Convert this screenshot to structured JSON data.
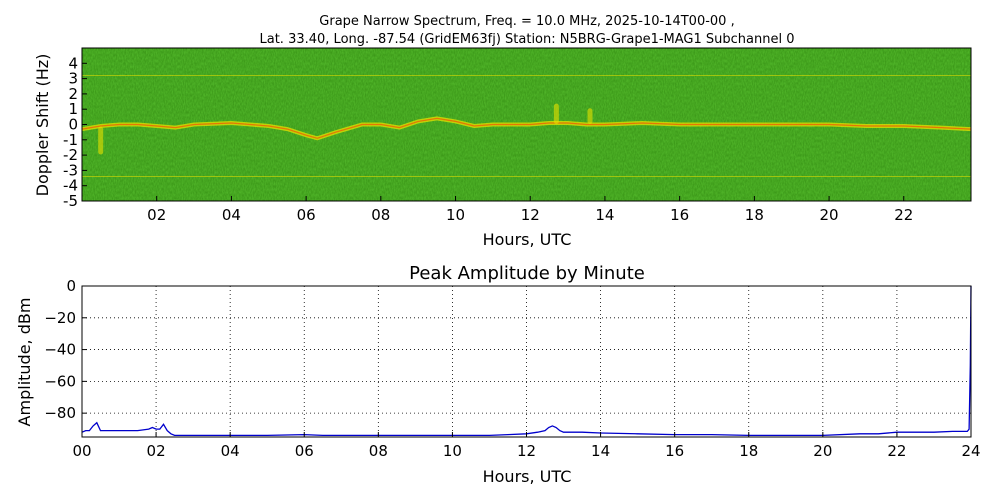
{
  "header": {
    "line1": "Grape Narrow Spectrum, Freq. = 10.0 MHz, 2025-10-14T00-00 ,",
    "line2": "Lat.  33.40, Long. -87.54 (GridEM63fj) Station: N5BRG-Grape1-MAG1 Subchannel 0"
  },
  "chart_data": [
    {
      "type": "heatmap",
      "title": "",
      "xlabel": "Hours, UTC",
      "ylabel": "Doppler Shift (Hz)",
      "xlim": [
        0,
        23.8
      ],
      "ylim": [
        -5,
        5
      ],
      "xticks": [
        {
          "value": 2,
          "label": "02"
        },
        {
          "value": 4,
          "label": "04"
        },
        {
          "value": 6,
          "label": "06"
        },
        {
          "value": 8,
          "label": "08"
        },
        {
          "value": 10,
          "label": "10"
        },
        {
          "value": 12,
          "label": "12"
        },
        {
          "value": 14,
          "label": "14"
        },
        {
          "value": 16,
          "label": "16"
        },
        {
          "value": 18,
          "label": "18"
        },
        {
          "value": 20,
          "label": "20"
        },
        {
          "value": 22,
          "label": "22"
        }
      ],
      "yticks": [
        {
          "value": 4,
          "label": "4"
        },
        {
          "value": 3,
          "label": "3"
        },
        {
          "value": 2,
          "label": "2"
        },
        {
          "value": 1,
          "label": "1"
        },
        {
          "value": 0,
          "label": "0"
        },
        {
          "value": -1,
          "label": "-1"
        },
        {
          "value": -2,
          "label": "-2"
        },
        {
          "value": -3,
          "label": "-3"
        },
        {
          "value": -4,
          "label": "-4"
        },
        {
          "value": -5,
          "label": "-5"
        }
      ],
      "background_color": "#3d9a1a",
      "signal_color": "#e8e000",
      "peak_color": "#ff3a00",
      "carrier_trace": {
        "hours": [
          0,
          0.5,
          1.0,
          1.5,
          2.0,
          2.5,
          3.0,
          4.0,
          5.0,
          5.5,
          6.0,
          6.3,
          6.8,
          7.5,
          8.0,
          8.5,
          9.0,
          9.5,
          10.0,
          10.5,
          11.0,
          12.0,
          12.5,
          13.0,
          13.5,
          14.0,
          15.0,
          16.0,
          17.0,
          18.0,
          19.0,
          20.0,
          21.0,
          22.0,
          23.0,
          23.8
        ],
        "shift_hz": [
          -0.3,
          -0.1,
          0.0,
          0.0,
          -0.1,
          -0.2,
          0.0,
          0.1,
          -0.1,
          -0.3,
          -0.7,
          -0.9,
          -0.5,
          0.0,
          0.0,
          -0.2,
          0.2,
          0.4,
          0.2,
          -0.1,
          0.0,
          0.0,
          0.1,
          0.1,
          0.0,
          0.0,
          0.1,
          0.0,
          0.0,
          0.0,
          0.0,
          0.0,
          -0.1,
          -0.1,
          -0.2,
          -0.3
        ]
      },
      "harmonic_lines_hz": [
        3.2,
        -3.4
      ],
      "excursions": [
        {
          "hour": 12.7,
          "shift_hz": [
            0.2,
            1.2
          ]
        },
        {
          "hour": 13.6,
          "shift_hz": [
            0.2,
            0.9
          ]
        },
        {
          "hour": 0.5,
          "shift_hz": [
            -1.8,
            -0.3
          ]
        }
      ]
    },
    {
      "type": "line",
      "title": "Peak Amplitude by Minute",
      "xlabel": "Hours, UTC",
      "ylabel": "Amplitude, dBm",
      "xlim": [
        0,
        24
      ],
      "ylim": [
        -95,
        0
      ],
      "grid": true,
      "line_color": "#0000cc",
      "xticks": [
        {
          "value": 0,
          "label": "00"
        },
        {
          "value": 2,
          "label": "02"
        },
        {
          "value": 4,
          "label": "04"
        },
        {
          "value": 6,
          "label": "06"
        },
        {
          "value": 8,
          "label": "08"
        },
        {
          "value": 10,
          "label": "10"
        },
        {
          "value": 12,
          "label": "12"
        },
        {
          "value": 14,
          "label": "14"
        },
        {
          "value": 16,
          "label": "16"
        },
        {
          "value": 18,
          "label": "18"
        },
        {
          "value": 20,
          "label": "20"
        },
        {
          "value": 22,
          "label": "22"
        },
        {
          "value": 24,
          "label": "24"
        }
      ],
      "yticks": [
        {
          "value": 0,
          "label": "0"
        },
        {
          "value": -20,
          "label": "−20"
        },
        {
          "value": -40,
          "label": "−40"
        },
        {
          "value": -60,
          "label": "−60"
        },
        {
          "value": -80,
          "label": "−80"
        }
      ],
      "series": [
        {
          "x": [
            0,
            0.1,
            0.2,
            0.3,
            0.4,
            0.5,
            1.0,
            1.5,
            1.8,
            1.9,
            2.0,
            2.1,
            2.2,
            2.3,
            2.4,
            2.5,
            3.0,
            4.0,
            5.0,
            6.0,
            6.5,
            7.0,
            8.0,
            9.0,
            10.0,
            11.0,
            11.5,
            12.0,
            12.3,
            12.5,
            12.6,
            12.7,
            12.8,
            12.9,
            13.0,
            13.5,
            14.0,
            15.0,
            16.0,
            17.0,
            18.0,
            19.0,
            20.0,
            21.0,
            21.5,
            22.0,
            22.5,
            23.0,
            23.5,
            23.9,
            23.95,
            23.98,
            24.0
          ],
          "y": [
            -92,
            -91,
            -91,
            -88,
            -86,
            -91,
            -91,
            -91,
            -90,
            -89,
            -90,
            -90,
            -87,
            -91,
            -93,
            -94,
            -94,
            -94,
            -94,
            -93.5,
            -94,
            -94,
            -94,
            -94,
            -94,
            -94,
            -93.5,
            -93,
            -92,
            -91,
            -89,
            -88,
            -89,
            -91,
            -92,
            -92,
            -92.5,
            -93,
            -93.5,
            -93.5,
            -94,
            -94,
            -94,
            -93,
            -93,
            -92,
            -92,
            -92,
            -91.5,
            -91.5,
            -90,
            -50,
            0
          ]
        }
      ]
    }
  ]
}
